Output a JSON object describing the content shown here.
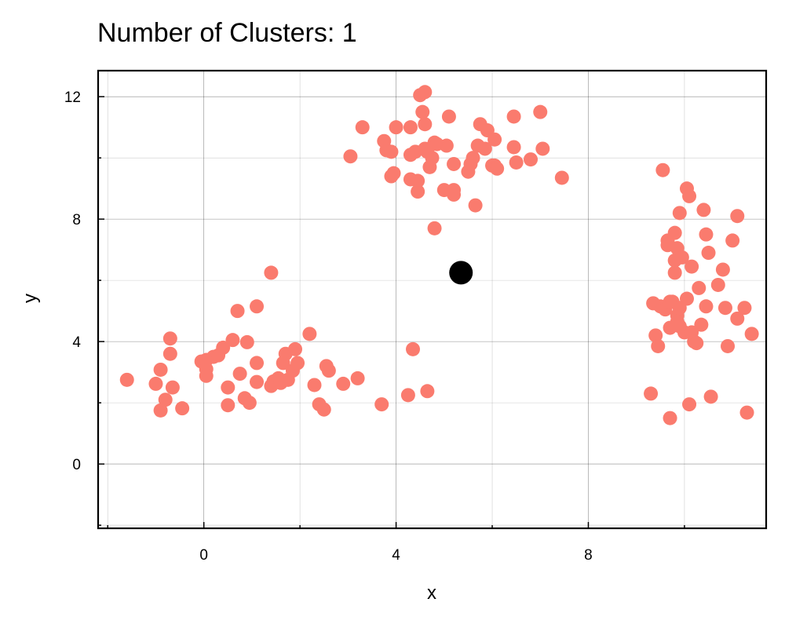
{
  "chart_data": {
    "type": "scatter",
    "title": "Number of Clusters: 1",
    "xlabel": "x",
    "ylabel": "y",
    "xlim": [
      -2.2,
      11.7
    ],
    "ylim": [
      -2.1,
      12.85
    ],
    "x_ticks": [
      0,
      4,
      8
    ],
    "y_ticks": [
      0,
      4,
      8,
      12
    ],
    "x_minor_ticks": [
      -2,
      2,
      6,
      10
    ],
    "y_minor_ticks": [
      -2,
      2,
      6,
      10
    ],
    "grid": true,
    "series": [
      {
        "role": "points",
        "color": "#fa7b6e",
        "points": [
          [
            -1.6,
            2.75
          ],
          [
            -1.0,
            2.62
          ],
          [
            -0.9,
            3.08
          ],
          [
            -0.9,
            1.75
          ],
          [
            -0.8,
            2.1
          ],
          [
            -0.7,
            4.1
          ],
          [
            -0.7,
            3.6
          ],
          [
            -0.65,
            2.5
          ],
          [
            -0.45,
            1.82
          ],
          [
            -0.05,
            3.35
          ],
          [
            0.05,
            3.4
          ],
          [
            0.05,
            3.1
          ],
          [
            0.05,
            2.88
          ],
          [
            0.2,
            3.5
          ],
          [
            0.3,
            3.55
          ],
          [
            0.4,
            3.8
          ],
          [
            0.5,
            2.5
          ],
          [
            0.5,
            1.92
          ],
          [
            0.6,
            4.05
          ],
          [
            0.7,
            5.0
          ],
          [
            0.75,
            2.95
          ],
          [
            0.85,
            2.15
          ],
          [
            0.9,
            3.98
          ],
          [
            0.95,
            2.0
          ],
          [
            1.1,
            5.15
          ],
          [
            1.1,
            3.3
          ],
          [
            1.1,
            2.68
          ],
          [
            1.4,
            6.25
          ],
          [
            1.4,
            2.55
          ],
          [
            1.45,
            2.7
          ],
          [
            1.55,
            2.8
          ],
          [
            1.6,
            2.65
          ],
          [
            1.65,
            3.3
          ],
          [
            1.7,
            3.6
          ],
          [
            1.75,
            2.75
          ],
          [
            1.85,
            3.05
          ],
          [
            1.9,
            3.75
          ],
          [
            1.95,
            3.3
          ],
          [
            2.2,
            4.25
          ],
          [
            2.3,
            2.58
          ],
          [
            2.4,
            1.95
          ],
          [
            2.5,
            1.78
          ],
          [
            2.55,
            3.2
          ],
          [
            2.6,
            3.05
          ],
          [
            2.9,
            2.62
          ],
          [
            3.2,
            2.8
          ],
          [
            3.7,
            1.95
          ],
          [
            4.25,
            2.25
          ],
          [
            4.35,
            3.75
          ],
          [
            4.65,
            2.38
          ],
          [
            3.05,
            10.05
          ],
          [
            3.3,
            11.0
          ],
          [
            3.75,
            10.55
          ],
          [
            3.8,
            10.25
          ],
          [
            3.9,
            10.2
          ],
          [
            3.9,
            9.4
          ],
          [
            3.95,
            9.5
          ],
          [
            4.0,
            11.0
          ],
          [
            4.3,
            11.0
          ],
          [
            4.3,
            9.3
          ],
          [
            4.3,
            10.1
          ],
          [
            4.4,
            10.2
          ],
          [
            4.45,
            9.25
          ],
          [
            4.45,
            8.9
          ],
          [
            4.5,
            12.05
          ],
          [
            4.55,
            11.5
          ],
          [
            4.6,
            12.15
          ],
          [
            4.6,
            11.1
          ],
          [
            4.6,
            10.3
          ],
          [
            4.65,
            10.2
          ],
          [
            4.7,
            9.7
          ],
          [
            4.75,
            10.0
          ],
          [
            4.8,
            10.5
          ],
          [
            4.8,
            7.7
          ],
          [
            4.85,
            10.45
          ],
          [
            5.0,
            8.95
          ],
          [
            5.05,
            10.4
          ],
          [
            5.1,
            11.35
          ],
          [
            5.2,
            8.95
          ],
          [
            5.2,
            8.8
          ],
          [
            5.2,
            9.8
          ],
          [
            5.5,
            9.55
          ],
          [
            5.55,
            9.8
          ],
          [
            5.6,
            10.0
          ],
          [
            5.65,
            8.45
          ],
          [
            5.7,
            10.4
          ],
          [
            5.75,
            11.1
          ],
          [
            5.85,
            10.3
          ],
          [
            5.9,
            10.9
          ],
          [
            6.0,
            9.75
          ],
          [
            6.05,
            9.75
          ],
          [
            6.05,
            10.6
          ],
          [
            6.1,
            9.65
          ],
          [
            6.45,
            11.35
          ],
          [
            6.45,
            10.35
          ],
          [
            6.5,
            9.85
          ],
          [
            6.8,
            9.95
          ],
          [
            7.0,
            11.5
          ],
          [
            7.05,
            10.3
          ],
          [
            7.45,
            9.35
          ],
          [
            9.3,
            2.3
          ],
          [
            9.35,
            5.25
          ],
          [
            9.4,
            4.2
          ],
          [
            9.45,
            3.85
          ],
          [
            9.5,
            5.15
          ],
          [
            9.55,
            9.6
          ],
          [
            9.6,
            5.05
          ],
          [
            9.65,
            7.3
          ],
          [
            9.65,
            7.15
          ],
          [
            9.7,
            5.3
          ],
          [
            9.7,
            4.45
          ],
          [
            9.7,
            1.5
          ],
          [
            9.75,
            5.3
          ],
          [
            9.8,
            7.55
          ],
          [
            9.8,
            6.65
          ],
          [
            9.8,
            6.25
          ],
          [
            9.85,
            7.05
          ],
          [
            9.85,
            4.85
          ],
          [
            9.85,
            4.65
          ],
          [
            9.9,
            8.2
          ],
          [
            9.9,
            5.1
          ],
          [
            9.9,
            4.5
          ],
          [
            9.95,
            6.75
          ],
          [
            10.0,
            4.3
          ],
          [
            10.05,
            9.0
          ],
          [
            10.05,
            5.4
          ],
          [
            10.1,
            8.75
          ],
          [
            10.1,
            1.95
          ],
          [
            10.15,
            6.45
          ],
          [
            10.15,
            4.3
          ],
          [
            10.2,
            4.0
          ],
          [
            10.25,
            3.95
          ],
          [
            10.3,
            5.75
          ],
          [
            10.35,
            4.55
          ],
          [
            10.4,
            8.3
          ],
          [
            10.45,
            7.5
          ],
          [
            10.45,
            5.15
          ],
          [
            10.5,
            6.9
          ],
          [
            10.55,
            2.2
          ],
          [
            10.7,
            5.85
          ],
          [
            10.8,
            6.35
          ],
          [
            10.85,
            5.1
          ],
          [
            10.9,
            3.85
          ],
          [
            11.0,
            7.3
          ],
          [
            11.1,
            8.1
          ],
          [
            11.1,
            4.75
          ],
          [
            11.25,
            5.1
          ],
          [
            11.3,
            1.68
          ],
          [
            11.4,
            4.25
          ]
        ]
      },
      {
        "role": "centroid",
        "color": "#000000",
        "points": [
          [
            5.35,
            6.25
          ]
        ]
      }
    ]
  }
}
